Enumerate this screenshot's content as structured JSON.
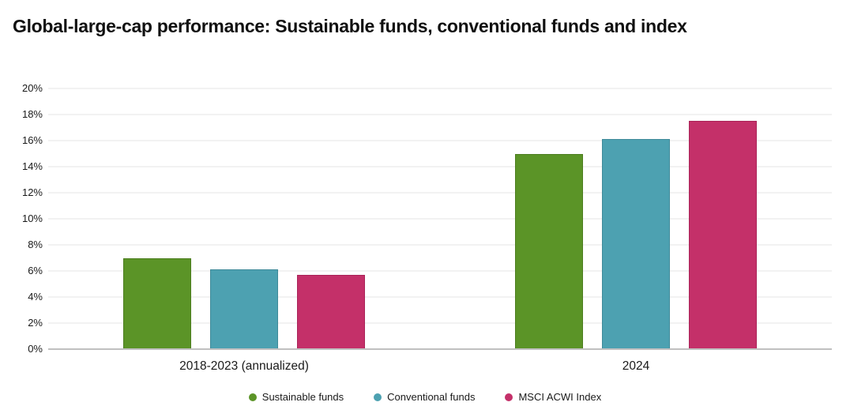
{
  "title": "Global-large-cap performance: Sustainable funds, conventional funds and index",
  "chart_data": {
    "type": "bar",
    "title": "Global-large-cap performance: Sustainable funds, conventional funds and index",
    "categories": [
      "2018-2023 (annualized)",
      "2024"
    ],
    "series": [
      {
        "name": "Sustainable funds",
        "color": "#5b9427",
        "border_color": "#4c7d1f",
        "values": [
          7.0,
          15.0
        ]
      },
      {
        "name": "Conventional funds",
        "color": "#4da1b1",
        "border_color": "#3f8a99",
        "values": [
          6.1,
          16.1
        ]
      },
      {
        "name": "MSCI ACWI Index",
        "color": "#c43069",
        "border_color": "#aa2358",
        "values": [
          5.7,
          17.5
        ]
      }
    ],
    "xlabel": "",
    "ylabel": "",
    "ylim": [
      0,
      20
    ],
    "ytick_labels": [
      "0%",
      "2%",
      "4%",
      "6%",
      "8%",
      "10%",
      "12%",
      "14%",
      "16%",
      "18%",
      "20%"
    ],
    "grid": true,
    "legend_position": "bottom",
    "axis_line_color": "#c0c0c0",
    "gridline_color": "#f2f2f2",
    "text_color": "#1a1a1a"
  }
}
